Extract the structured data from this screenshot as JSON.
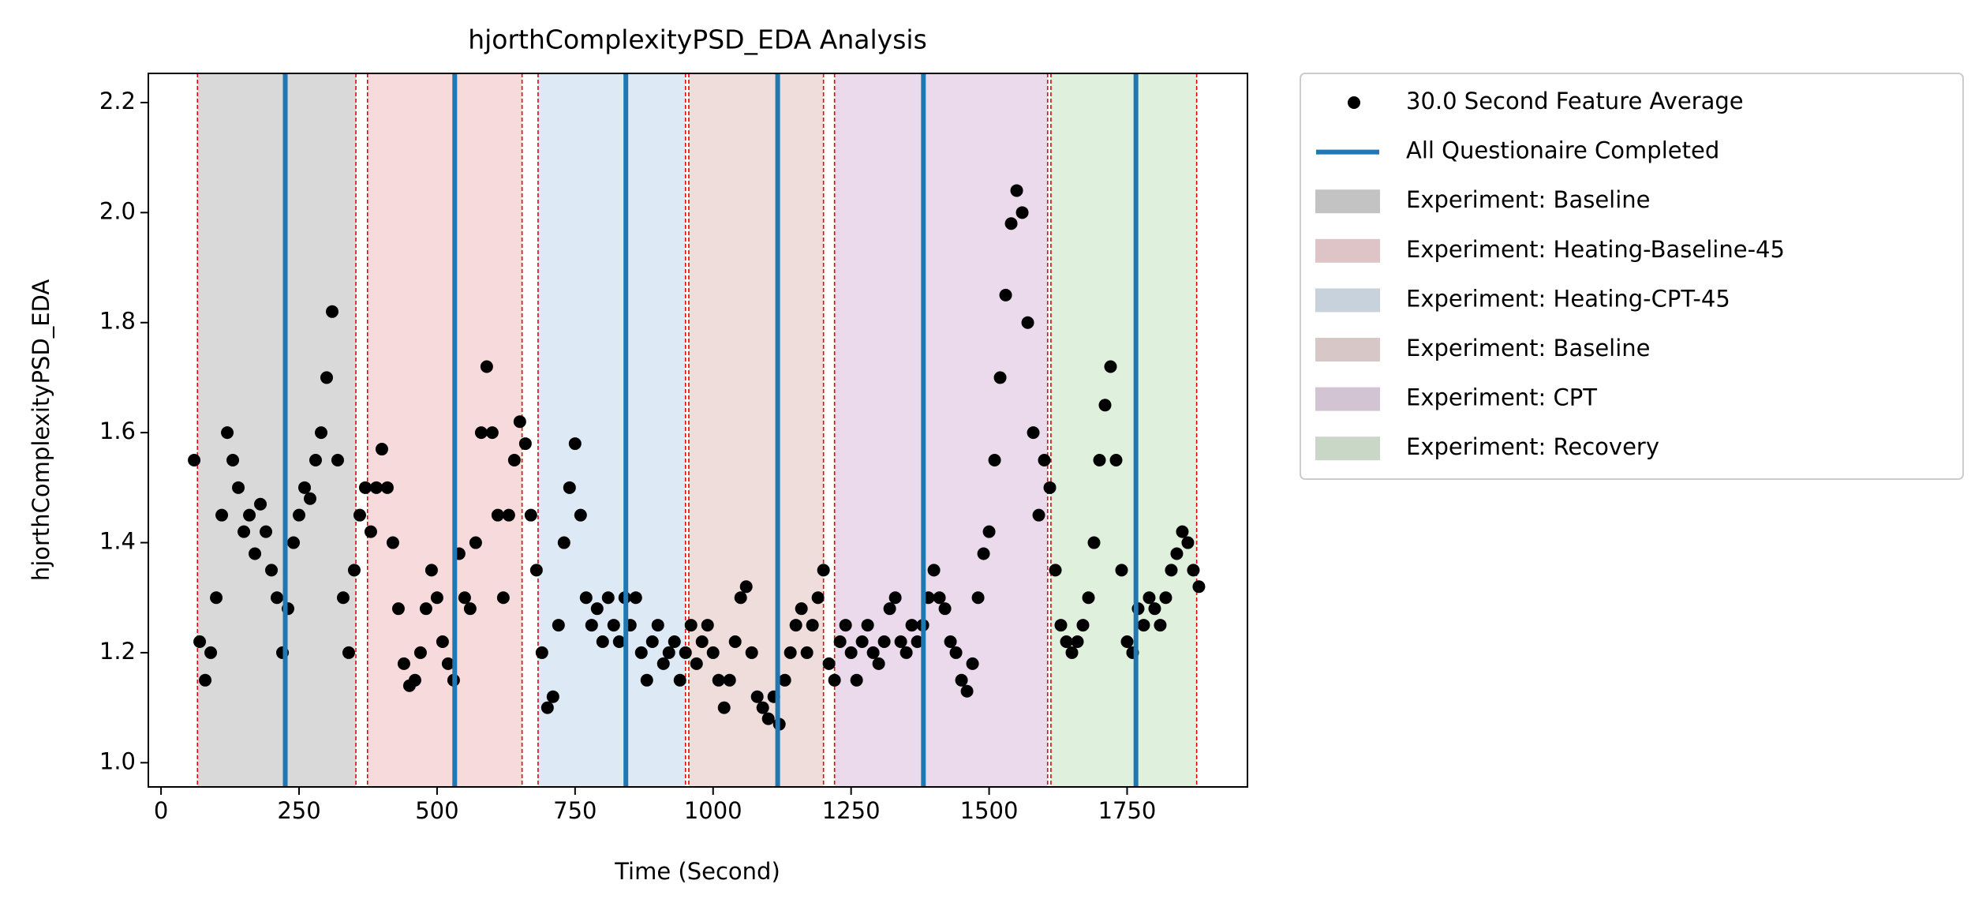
{
  "chart_data": {
    "type": "scatter",
    "title": "hjorthComplexityPSD_EDA Analysis",
    "x_label": "Time (Second)",
    "y_label": "hjorthComplexityPSD_EDA",
    "xlim": [
      -23,
      1968
    ],
    "ylim": [
      0.956,
      2.253
    ],
    "xticks": [
      0,
      250,
      500,
      750,
      1000,
      1250,
      1500,
      1750
    ],
    "yticks": [
      {
        "value": 1,
        "label": "1.0"
      },
      1.2,
      1.4,
      1.6,
      1.8,
      {
        "value": 2,
        "label": "2.0"
      },
      2.2
    ],
    "x": [
      60,
      70,
      80,
      90,
      100,
      110,
      120,
      130,
      140,
      150,
      160,
      170,
      180,
      190,
      200,
      210,
      220,
      230,
      240,
      250,
      260,
      270,
      280,
      290,
      300,
      310,
      320,
      330,
      340,
      350,
      360,
      370,
      380,
      390,
      400,
      410,
      420,
      430,
      440,
      450,
      460,
      470,
      480,
      490,
      500,
      510,
      520,
      530,
      540,
      550,
      560,
      570,
      580,
      590,
      600,
      610,
      620,
      630,
      640,
      650,
      660,
      670,
      680,
      690,
      700,
      710,
      720,
      730,
      740,
      750,
      760,
      770,
      780,
      790,
      800,
      810,
      820,
      830,
      840,
      850,
      860,
      870,
      880,
      890,
      900,
      910,
      920,
      930,
      940,
      950,
      960,
      970,
      980,
      990,
      1000,
      1010,
      1020,
      1030,
      1040,
      1050,
      1060,
      1070,
      1080,
      1090,
      1100,
      1110,
      1120,
      1130,
      1140,
      1150,
      1160,
      1170,
      1180,
      1190,
      1200,
      1210,
      1220,
      1230,
      1240,
      1250,
      1260,
      1270,
      1280,
      1290,
      1300,
      1310,
      1320,
      1330,
      1340,
      1350,
      1360,
      1370,
      1380,
      1390,
      1400,
      1410,
      1420,
      1430,
      1440,
      1450,
      1460,
      1470,
      1480,
      1490,
      1500,
      1510,
      1520,
      1530,
      1540,
      1550,
      1560,
      1570,
      1580,
      1590,
      1600,
      1610,
      1620,
      1630,
      1640,
      1650,
      1660,
      1670,
      1680,
      1690,
      1700,
      1710,
      1720,
      1730,
      1740,
      1750,
      1760,
      1770,
      1780,
      1790,
      1800,
      1810,
      1820,
      1830,
      1840,
      1850,
      1860,
      1870,
      1880
    ],
    "series": [
      {
        "name": "30.0 Second Feature Average",
        "color": "#000000",
        "values": [
          1.55,
          1.22,
          1.15,
          1.2,
          1.3,
          1.45,
          1.6,
          1.55,
          1.5,
          1.42,
          1.45,
          1.38,
          1.47,
          1.42,
          1.35,
          1.3,
          1.2,
          1.28,
          1.4,
          1.45,
          1.5,
          1.48,
          1.55,
          1.6,
          1.7,
          1.82,
          1.55,
          1.3,
          1.2,
          1.35,
          1.45,
          1.5,
          1.42,
          1.5,
          1.57,
          1.5,
          1.4,
          1.28,
          1.18,
          1.14,
          1.15,
          1.2,
          1.28,
          1.35,
          1.3,
          1.22,
          1.18,
          1.15,
          1.38,
          1.3,
          1.28,
          1.4,
          1.6,
          1.72,
          1.6,
          1.45,
          1.3,
          1.45,
          1.55,
          1.62,
          1.58,
          1.45,
          1.35,
          1.2,
          1.1,
          1.12,
          1.25,
          1.4,
          1.5,
          1.58,
          1.45,
          1.3,
          1.25,
          1.28,
          1.22,
          1.3,
          1.25,
          1.22,
          1.3,
          1.25,
          1.3,
          1.2,
          1.15,
          1.22,
          1.25,
          1.18,
          1.2,
          1.22,
          1.15,
          1.2,
          1.25,
          1.18,
          1.22,
          1.25,
          1.2,
          1.15,
          1.1,
          1.15,
          1.22,
          1.3,
          1.32,
          1.2,
          1.12,
          1.1,
          1.08,
          1.12,
          1.07,
          1.15,
          1.2,
          1.25,
          1.28,
          1.2,
          1.25,
          1.3,
          1.35,
          1.18,
          1.15,
          1.22,
          1.25,
          1.2,
          1.15,
          1.22,
          1.25,
          1.2,
          1.18,
          1.22,
          1.28,
          1.3,
          1.22,
          1.2,
          1.25,
          1.22,
          1.25,
          1.3,
          1.35,
          1.3,
          1.28,
          1.22,
          1.2,
          1.15,
          1.13,
          1.18,
          1.3,
          1.38,
          1.42,
          1.55,
          1.7,
          1.85,
          1.98,
          2.04,
          2.0,
          1.8,
          1.6,
          1.45,
          1.55,
          1.5,
          1.35,
          1.25,
          1.22,
          1.2,
          1.22,
          1.25,
          1.3,
          1.4,
          1.55,
          1.65,
          1.72,
          1.55,
          1.35,
          1.22,
          1.2,
          1.28,
          1.25,
          1.3,
          1.28,
          1.25,
          1.3,
          1.35,
          1.38,
          1.42,
          1.4,
          1.35,
          1.32
        ]
      }
    ],
    "questionnaire": {
      "name": "All Questionaire Completed",
      "color": "#1f77b4",
      "x": [
        225,
        532,
        842,
        1117,
        1381,
        1766
      ]
    },
    "boundary_color": "#e8000b",
    "regions": [
      {
        "label": "Experiment: Baseline",
        "start": 66,
        "end": 353,
        "color": "#d9d9d9"
      },
      {
        "label": "Experiment: Heating-Baseline-45",
        "start": 374,
        "end": 654,
        "color": "#f7dadc"
      },
      {
        "label": "Experiment: Heating-CPT-45",
        "start": 683,
        "end": 950,
        "color": "#dde9f4"
      },
      {
        "label": "Experiment: Baseline",
        "start": 956,
        "end": 1200,
        "color": "#efdddc"
      },
      {
        "label": "Experiment: CPT",
        "start": 1220,
        "end": 1606,
        "color": "#eadaeb"
      },
      {
        "label": "Experiment: Recovery",
        "start": 1612,
        "end": 1876,
        "color": "#dff0dc"
      }
    ]
  }
}
